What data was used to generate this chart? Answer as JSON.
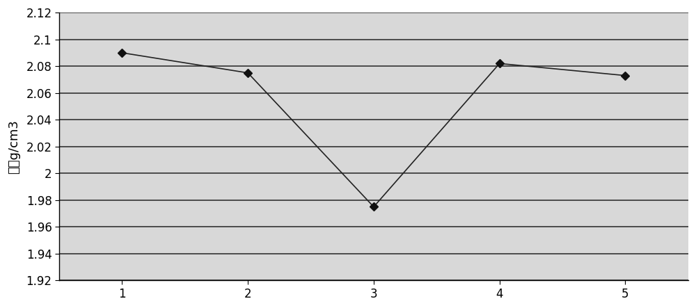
{
  "x": [
    1,
    2,
    3,
    4,
    5
  ],
  "y": [
    2.09,
    2.075,
    1.975,
    2.082,
    2.073
  ],
  "ylabel": "密度g/cm3",
  "ylim": [
    1.92,
    2.12
  ],
  "yticks": [
    1.92,
    1.94,
    1.96,
    1.98,
    2.0,
    2.02,
    2.04,
    2.06,
    2.08,
    2.1,
    2.12
  ],
  "xticks": [
    1,
    2,
    3,
    4,
    5
  ],
  "xlim": [
    0.5,
    5.5
  ],
  "line_color": "#222222",
  "marker": "D",
  "marker_size": 6,
  "marker_facecolor": "#111111",
  "bg_color": "#d8d8d8",
  "grid_color": "#333333",
  "grid_linewidth": 1.2,
  "figsize": [
    10.0,
    4.43
  ],
  "dpi": 100,
  "ylabel_fontsize": 13,
  "tick_fontsize": 12
}
